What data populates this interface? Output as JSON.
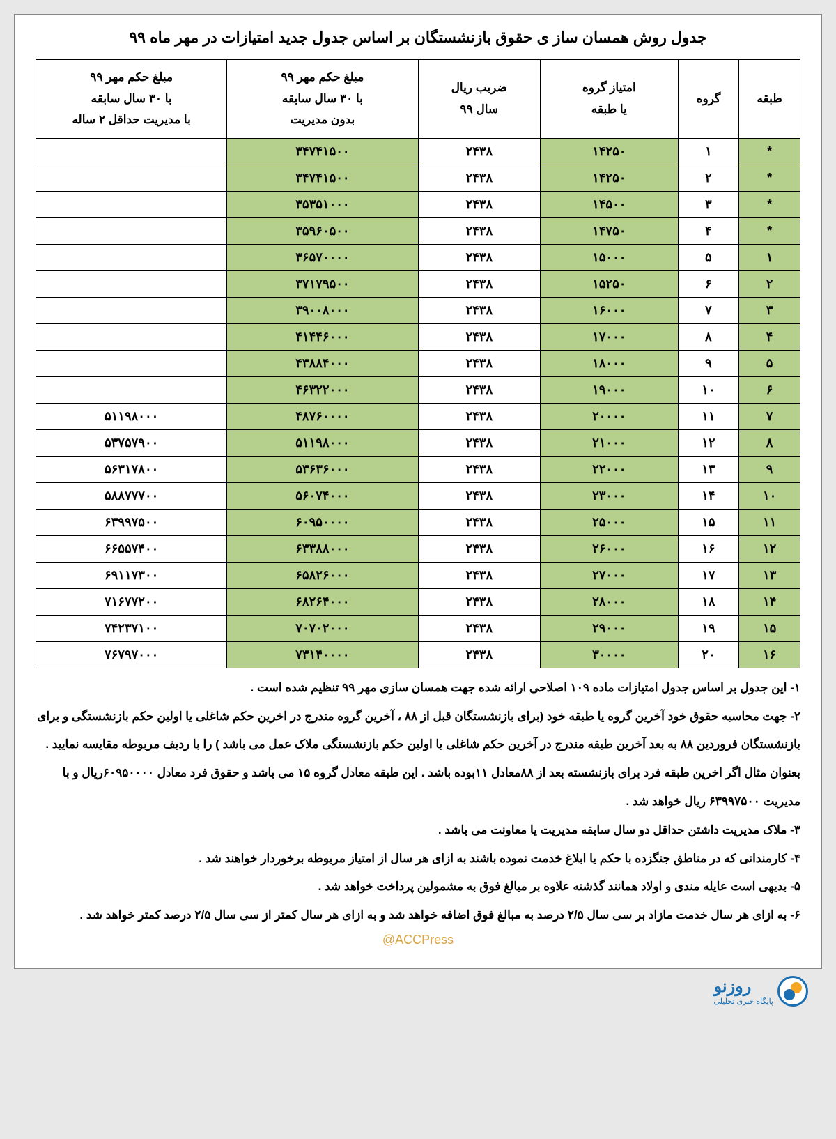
{
  "title": "جدول روش همسان ساز ی حقوق بازنشستگان بر اساس جدول جدید امتیازات در مهر ماه ۹۹",
  "headers": {
    "tabaghe": "طبقه",
    "goruh": "گروه",
    "emtiaz": "امتیاز گروه<br>یا طبقه",
    "zarib": "ضریب ریال<br>سال ۹۹",
    "mablagh_bedun": "مبلغ حکم مهر ۹۹<br>با ۳۰ سال سابقه<br>بدون مدیریت",
    "mablagh_ba": "مبلغ حکم مهر ۹۹<br>با ۳۰ سال سابقه<br>با مدیریت حداقل ۲ ساله"
  },
  "rows": [
    {
      "tabaghe": "*",
      "goruh": "۱",
      "emtiaz": "۱۴۲۵۰",
      "zarib": "۲۴۳۸",
      "m1": "۳۴۷۴۱۵۰۰",
      "m2": ""
    },
    {
      "tabaghe": "*",
      "goruh": "۲",
      "emtiaz": "۱۴۲۵۰",
      "zarib": "۲۴۳۸",
      "m1": "۳۴۷۴۱۵۰۰",
      "m2": ""
    },
    {
      "tabaghe": "*",
      "goruh": "۳",
      "emtiaz": "۱۴۵۰۰",
      "zarib": "۲۴۳۸",
      "m1": "۳۵۳۵۱۰۰۰",
      "m2": ""
    },
    {
      "tabaghe": "*",
      "goruh": "۴",
      "emtiaz": "۱۴۷۵۰",
      "zarib": "۲۴۳۸",
      "m1": "۳۵۹۶۰۵۰۰",
      "m2": ""
    },
    {
      "tabaghe": "۱",
      "goruh": "۵",
      "emtiaz": "۱۵۰۰۰",
      "zarib": "۲۴۳۸",
      "m1": "۳۶۵۷۰۰۰۰",
      "m2": ""
    },
    {
      "tabaghe": "۲",
      "goruh": "۶",
      "emtiaz": "۱۵۲۵۰",
      "zarib": "۲۴۳۸",
      "m1": "۳۷۱۷۹۵۰۰",
      "m2": ""
    },
    {
      "tabaghe": "۳",
      "goruh": "۷",
      "emtiaz": "۱۶۰۰۰",
      "zarib": "۲۴۳۸",
      "m1": "۳۹۰۰۸۰۰۰",
      "m2": ""
    },
    {
      "tabaghe": "۴",
      "goruh": "۸",
      "emtiaz": "۱۷۰۰۰",
      "zarib": "۲۴۳۸",
      "m1": "۴۱۴۴۶۰۰۰",
      "m2": ""
    },
    {
      "tabaghe": "۵",
      "goruh": "۹",
      "emtiaz": "۱۸۰۰۰",
      "zarib": "۲۴۳۸",
      "m1": "۴۳۸۸۴۰۰۰",
      "m2": ""
    },
    {
      "tabaghe": "۶",
      "goruh": "۱۰",
      "emtiaz": "۱۹۰۰۰",
      "zarib": "۲۴۳۸",
      "m1": "۴۶۳۲۲۰۰۰",
      "m2": ""
    },
    {
      "tabaghe": "۷",
      "goruh": "۱۱",
      "emtiaz": "۲۰۰۰۰",
      "zarib": "۲۴۳۸",
      "m1": "۴۸۷۶۰۰۰۰",
      "m2": "۵۱۱۹۸۰۰۰"
    },
    {
      "tabaghe": "۸",
      "goruh": "۱۲",
      "emtiaz": "۲۱۰۰۰",
      "zarib": "۲۴۳۸",
      "m1": "۵۱۱۹۸۰۰۰",
      "m2": "۵۳۷۵۷۹۰۰"
    },
    {
      "tabaghe": "۹",
      "goruh": "۱۳",
      "emtiaz": "۲۲۰۰۰",
      "zarib": "۲۴۳۸",
      "m1": "۵۳۶۳۶۰۰۰",
      "m2": "۵۶۳۱۷۸۰۰"
    },
    {
      "tabaghe": "۱۰",
      "goruh": "۱۴",
      "emtiaz": "۲۳۰۰۰",
      "zarib": "۲۴۳۸",
      "m1": "۵۶۰۷۴۰۰۰",
      "m2": "۵۸۸۷۷۷۰۰"
    },
    {
      "tabaghe": "۱۱",
      "goruh": "۱۵",
      "emtiaz": "۲۵۰۰۰",
      "zarib": "۲۴۳۸",
      "m1": "۶۰۹۵۰۰۰۰",
      "m2": "۶۳۹۹۷۵۰۰"
    },
    {
      "tabaghe": "۱۲",
      "goruh": "۱۶",
      "emtiaz": "۲۶۰۰۰",
      "zarib": "۲۴۳۸",
      "m1": "۶۳۳۸۸۰۰۰",
      "m2": "۶۶۵۵۷۴۰۰"
    },
    {
      "tabaghe": "۱۳",
      "goruh": "۱۷",
      "emtiaz": "۲۷۰۰۰",
      "zarib": "۲۴۳۸",
      "m1": "۶۵۸۲۶۰۰۰",
      "m2": "۶۹۱۱۷۳۰۰"
    },
    {
      "tabaghe": "۱۴",
      "goruh": "۱۸",
      "emtiaz": "۲۸۰۰۰",
      "zarib": "۲۴۳۸",
      "m1": "۶۸۲۶۴۰۰۰",
      "m2": "۷۱۶۷۷۲۰۰"
    },
    {
      "tabaghe": "۱۵",
      "goruh": "۱۹",
      "emtiaz": "۲۹۰۰۰",
      "zarib": "۲۴۳۸",
      "m1": "۷۰۷۰۲۰۰۰",
      "m2": "۷۴۲۳۷۱۰۰"
    },
    {
      "tabaghe": "۱۶",
      "goruh": "۲۰",
      "emtiaz": "۳۰۰۰۰",
      "zarib": "۲۴۳۸",
      "m1": "۷۳۱۴۰۰۰۰",
      "m2": "۷۶۷۹۷۰۰۰"
    }
  ],
  "notes": [
    "۱- این جدول بر اساس جدول امتیازات ماده ۱۰۹ اصلاحی ارائه شده جهت همسان سازی مهر ۹۹ تنظیم شده است .",
    "۲- جهت محاسبه حقوق خود آخرین گروه یا طبقه خود (برای بازنشستگان قبل از ۸۸ ، آخرین گروه مندرج در اخرین حکم شاغلی یا اولین حکم بازنشستگی و برای بازنشستگان فروردین ۸۸ به بعد آخرین طبقه مندرج در آخرین حکم شاغلی یا اولین حکم بازنشستگی ملاک عمل می باشد ) را با ردیف مربوطه مقایسه نمایید . بعنوان مثال اگر اخرین طبقه فرد برای بازنشسته بعد از ۸۸معادل ۱۱بوده باشد . این طبقه معادل گروه ۱۵ می باشد و حقوق فرد معادل ۶۰۹۵۰۰۰۰ریال و با مدیریت ۶۳۹۹۷۵۰۰ ریال خواهد شد .",
    "۳- ملاک مدیریت داشتن حداقل دو سال سابقه مدیریت یا معاونت می باشد .",
    "۴- کارمندانی که در مناطق جنگزده با حکم یا ابلاغ خدمت نموده باشند به ازای هر سال از امتیاز مربوطه برخوردار خواهند شد .",
    "۵- بدیهی است عایله مندی و اولاد همانند گذشته علاوه بر مبالغ فوق به مشمولین پرداخت خواهد شد .",
    "۶- به ازای هر سال خدمت مازاد بر سی سال ۲/۵ درصد به مبالغ فوق اضافه خواهد شد و به ازای هر سال کمتر از سی سال ۲/۵ درصد کمتر خواهد شد ."
  ],
  "watermark": "@ACCPress",
  "logo": {
    "main": "روزنو",
    "sub": "پایگاه خبری تحلیلی"
  },
  "style": {
    "green": "#b5cf8d",
    "border": "#000000",
    "page_bg": "#ffffff",
    "body_bg": "#e8e8e8",
    "watermark_color": "#d9a441",
    "logo_blue": "#1a6fb3",
    "logo_orange": "#f5a623"
  }
}
